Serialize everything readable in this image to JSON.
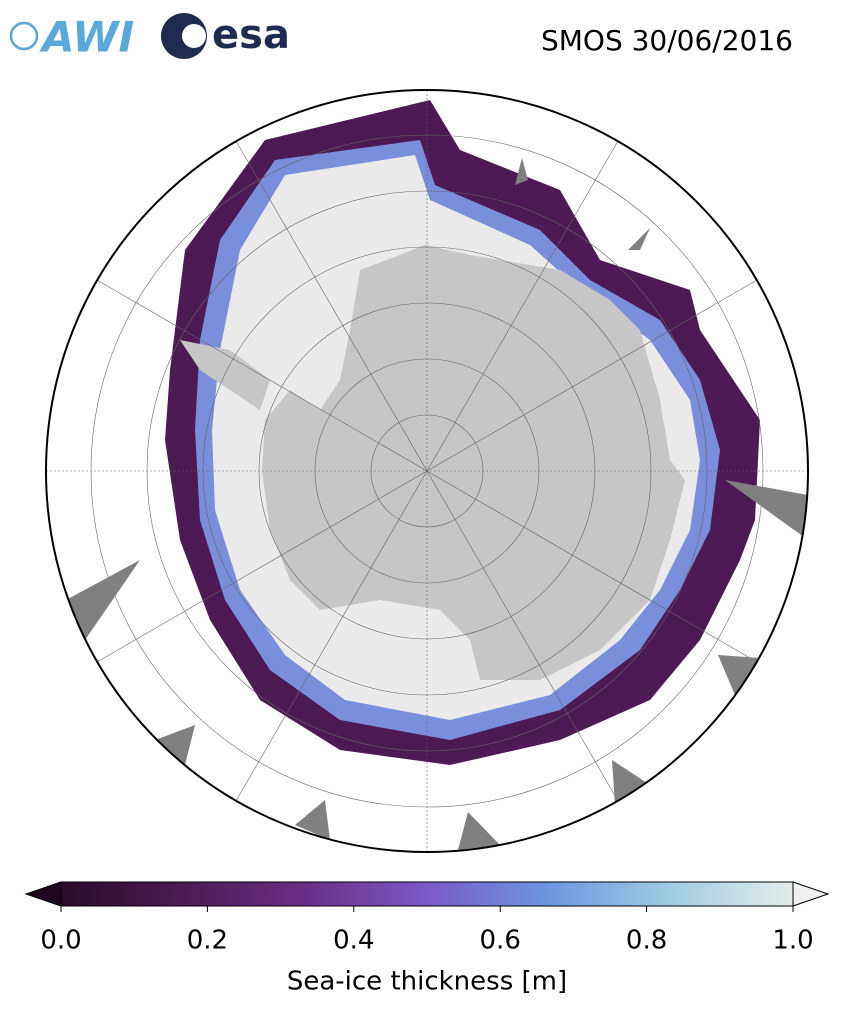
{
  "logos": [
    "AWI",
    "esa"
  ],
  "title": "SMOS 30/06/2016",
  "colorbar": {
    "label": "Sea-ice thickness [m]",
    "lim": [
      0,
      1
    ],
    "ticks": [
      {
        "value": 0,
        "label": "0.0"
      },
      {
        "value": 0.2,
        "label": "0.2"
      },
      {
        "value": 0.4,
        "label": "0.4"
      },
      {
        "value": 0.6,
        "label": "0.6"
      },
      {
        "value": 0.8,
        "label": "0.8"
      },
      {
        "value": 1,
        "label": "1.0"
      }
    ],
    "colors": [
      "#2a0c28",
      "#4e1a55",
      "#6b2e86",
      "#7a5ac8",
      "#6c96e0",
      "#9fcde3",
      "#e6ecea"
    ]
  }
}
